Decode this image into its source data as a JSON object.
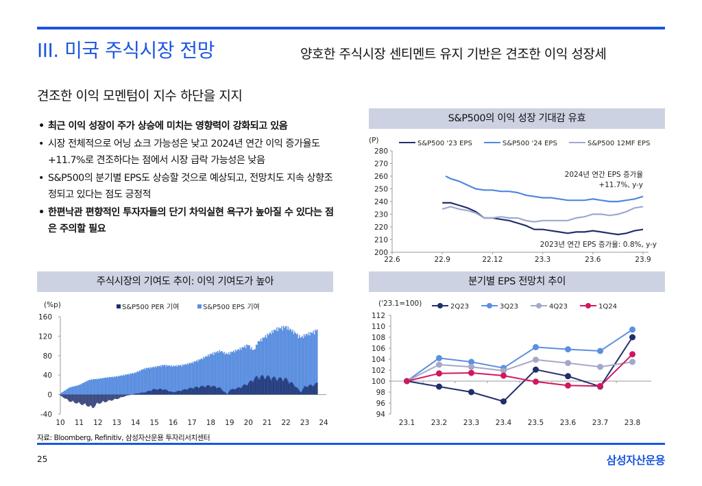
{
  "header": {
    "title": "III. 미국 주식시장 전망",
    "subtitle": "양호한 주식시장 센티멘트 유지 기반은 견조한 이익 성장세"
  },
  "section": {
    "heading": "견조한 이익 모멘텀이 지수 하단을 지지",
    "bullets": [
      {
        "text": "최근 이익 성장이 주가 상승에 미치는 영향력이 강화되고 있음",
        "bold": true
      },
      {
        "text": "시장 전체적으로 어닝 쇼크 가능성은 낮고 2024년 연간 이익 증가율도 +11.7%로 견조하다는 점에서 시장 급락 가능성은 낮음",
        "bold": false
      },
      {
        "text": "S&P500의 분기별 EPS도 상승할 것으로 예상되고, 전망치도 지속 상향조정되고 있다는 점도 긍정적",
        "bold": false
      },
      {
        "text": "한편낙관 편향적인 투자자들의 단기 차익실현 욕구가 높아질 수 있다는 점은 주의할 필요",
        "bold": true
      }
    ]
  },
  "panels": {
    "eps_expect_title": "S&P500의 이익 성장 기대감 유효",
    "contribution_title": "주식시장의 기여도 추이: 이익 기여도가 높아",
    "quarterly_title": "분기별 EPS 전망치 추이"
  },
  "footer": {
    "source": "자료: Bloomberg, Refinitiv, 삼성자산운용 투자리서치센터",
    "page_number": "25",
    "logo_text": "삼성자산운용"
  },
  "chart_data": [
    {
      "id": "eps_expectations",
      "type": "line",
      "title": "S&P500의 이익 성장 기대감 유효",
      "ylabel": "(P)",
      "ylim": [
        200,
        280
      ],
      "yticks": [
        "200",
        "210",
        "220",
        "230",
        "240",
        "250",
        "260",
        "270",
        "280"
      ],
      "x_ticks": [
        "22.6",
        "22.9",
        "22.12",
        "23.3",
        "23.6",
        "23.9"
      ],
      "x_range": [
        0,
        15
      ],
      "annotations": [
        "2024년 연간 EPS 증가율",
        "+11.7%, y-y",
        "2023년 연간 EPS 증가율: 0.8%, y-y"
      ],
      "series": [
        {
          "name": "S&P500  '23 EPS",
          "color": "#1f2f6b",
          "x": [
            3.0,
            3.5,
            4.0,
            4.5,
            5.0,
            5.5,
            6.0,
            6.5,
            7.0,
            7.5,
            8.0,
            8.5,
            9.0,
            9.5,
            10.0,
            10.5,
            11.0,
            11.5,
            12.0,
            12.5,
            13.0,
            13.5,
            14.0,
            14.5,
            15.0
          ],
          "y": [
            239,
            239,
            237,
            235,
            232,
            227,
            227,
            226,
            225,
            223,
            221,
            218,
            218,
            217,
            216,
            215,
            216,
            216,
            217,
            216,
            215,
            214,
            215,
            217,
            218
          ]
        },
        {
          "name": "S&P500  '24 EPS",
          "color": "#4f87de",
          "x": [
            3.2,
            3.5,
            4.0,
            4.5,
            5.0,
            5.5,
            6.0,
            6.5,
            7.0,
            7.5,
            8.0,
            8.5,
            9.0,
            9.5,
            10.0,
            10.5,
            11.0,
            11.5,
            12.0,
            12.5,
            13.0,
            13.5,
            14.0,
            14.5,
            15.0
          ],
          "y": [
            260,
            258,
            256,
            253,
            250,
            249,
            249,
            248,
            248,
            247,
            245,
            244,
            243,
            243,
            242,
            241,
            241,
            241,
            242,
            241,
            240,
            240,
            241,
            242,
            244
          ]
        },
        {
          "name": "S&P500  12MF EPS",
          "color": "#9fa7cf",
          "x": [
            3.0,
            3.5,
            4.0,
            4.5,
            5.0,
            5.5,
            6.0,
            6.5,
            7.0,
            7.5,
            8.0,
            8.5,
            9.0,
            9.5,
            10.0,
            10.5,
            11.0,
            11.5,
            12.0,
            12.5,
            13.0,
            13.5,
            14.0,
            14.5,
            15.0
          ],
          "y": [
            234,
            236,
            234,
            233,
            231,
            227,
            227,
            228,
            227,
            227,
            225,
            224,
            225,
            225,
            225,
            225,
            227,
            228,
            230,
            230,
            229,
            230,
            232,
            235,
            236
          ]
        }
      ]
    },
    {
      "id": "market_contribution",
      "type": "bar",
      "title": "주식시장의 기여도 추이: 이익 기여도가 높아",
      "ylabel": "(%p)",
      "ylim": [
        -40,
        160
      ],
      "yticks": [
        "-40",
        "0",
        "40",
        "80",
        "120",
        "160"
      ],
      "x_ticks": [
        "10",
        "11",
        "12",
        "13",
        "14",
        "15",
        "16",
        "17",
        "18",
        "19",
        "20",
        "21",
        "22",
        "23",
        "24"
      ],
      "x_range": [
        10,
        24
      ],
      "series": [
        {
          "name": "S&P500 PER 기여",
          "color": "#1f2f6b",
          "x": [
            10.0,
            10.5,
            11.0,
            11.5,
            11.7,
            12.0,
            12.5,
            13.0,
            13.5,
            14.0,
            14.5,
            15.0,
            15.5,
            16.0,
            16.5,
            17.0,
            17.5,
            18.0,
            18.5,
            18.9,
            19.0,
            19.5,
            20.0,
            20.3,
            20.5,
            21.0,
            21.5,
            22.0,
            22.5,
            22.8,
            23.0,
            23.5,
            23.7
          ],
          "y": [
            -2,
            -15,
            -20,
            -25,
            -30,
            -20,
            -15,
            -10,
            -3,
            2,
            5,
            12,
            12,
            5,
            10,
            15,
            18,
            20,
            15,
            0,
            10,
            15,
            25,
            35,
            40,
            40,
            36,
            35,
            20,
            5,
            18,
            22,
            26
          ]
        },
        {
          "name": "S&P500 EPS 기여",
          "color": "#5b8fe0",
          "x": [
            10.0,
            10.5,
            11.0,
            11.5,
            11.7,
            12.0,
            12.5,
            13.0,
            13.5,
            14.0,
            14.5,
            15.0,
            15.5,
            16.0,
            16.5,
            17.0,
            17.5,
            18.0,
            18.5,
            18.9,
            19.0,
            19.5,
            20.0,
            20.3,
            20.5,
            21.0,
            21.5,
            22.0,
            22.5,
            22.8,
            23.0,
            23.5,
            23.7
          ],
          "y": [
            2,
            15,
            20,
            30,
            32,
            33,
            36,
            38,
            42,
            46,
            55,
            58,
            62,
            60,
            62,
            67,
            75,
            85,
            92,
            85,
            88,
            95,
            105,
            92,
            110,
            125,
            138,
            143,
            130,
            120,
            125,
            132,
            138
          ]
        }
      ]
    },
    {
      "id": "quarterly_eps",
      "type": "line",
      "title": "분기별 EPS 전망치 추이",
      "ylabel": "('23.1=100)",
      "ylim": [
        94,
        112
      ],
      "yticks": [
        "94",
        "96",
        "98",
        "100",
        "102",
        "104",
        "106",
        "108",
        "110",
        "112"
      ],
      "categories": [
        "23.1",
        "23.2",
        "23.3",
        "23.4",
        "23.5",
        "23.6",
        "23.7",
        "23.8"
      ],
      "series": [
        {
          "name": "2Q23",
          "color": "#1f2f6b",
          "values": [
            100,
            99.0,
            98.0,
            96.3,
            102.1,
            100.9,
            99.0,
            108.0
          ]
        },
        {
          "name": "3Q23",
          "color": "#5b8fe0",
          "values": [
            100,
            104.2,
            103.5,
            102.4,
            106.2,
            105.8,
            105.5,
            109.4
          ]
        },
        {
          "name": "4Q23",
          "color": "#a4a8c8",
          "values": [
            100,
            103.0,
            102.6,
            101.9,
            103.9,
            103.3,
            102.6,
            103.5
          ]
        },
        {
          "name": "1Q24",
          "color": "#d0185f",
          "values": [
            100,
            101.4,
            101.5,
            101.0,
            99.9,
            99.2,
            99.1,
            104.9
          ]
        }
      ]
    }
  ]
}
